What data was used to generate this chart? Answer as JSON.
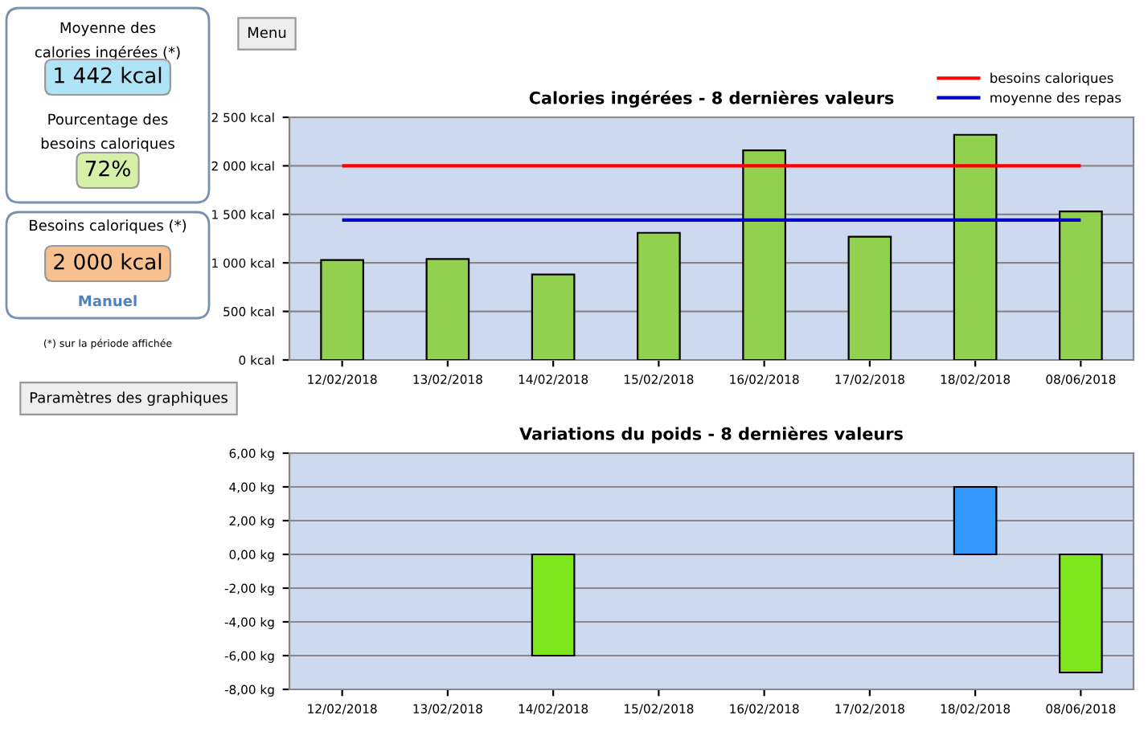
{
  "chart_data": [
    {
      "type": "other",
      "annotations": [
        "Menu",
        "Moyenne des",
        "calories ingérées (*)",
        "1 442 kcal",
        "Pourcentage des",
        "besoins caloriques",
        "72%",
        "Besoins caloriques (*)",
        "2 000 kcal",
        "Manuel",
        "(*) sur la période affichée",
        "Paramètres des graphiques"
      ]
    },
    {
      "type": "bar",
      "title": "Calories ingérées - 8 dernières valeurs",
      "categories": [
        "12/02/2018",
        "13/02/2018",
        "14/02/2018",
        "15/02/2018",
        "16/02/2018",
        "17/02/2018",
        "18/02/2018",
        "08/06/2018"
      ],
      "values": [
        1030,
        1040,
        880,
        1310,
        2160,
        1270,
        2320,
        1530
      ],
      "color": "#92d050",
      "ylim": [
        0,
        2500
      ],
      "yticks": [
        {
          "value": 0,
          "label": "0 kcal"
        },
        {
          "value": 500,
          "label": "500 kcal"
        },
        {
          "value": 1000,
          "label": "1 000 kcal"
        },
        {
          "value": 1500,
          "label": "1 500 kcal"
        },
        {
          "value": 2000,
          "label": "2 000 kcal"
        },
        {
          "value": 2500,
          "label": "2 500 kcal"
        }
      ],
      "ref_lines": [
        {
          "axis": "y",
          "value": 2000,
          "label": "besoins caloriques",
          "color": "#ff0000"
        },
        {
          "axis": "y",
          "value": 1442,
          "label": "moyenne des repas",
          "color": "#0000cc"
        }
      ],
      "grid": "y",
      "legend": "top right"
    },
    {
      "type": "bar",
      "title": "Variations du poids - 8 dernières valeurs",
      "categories": [
        "12/02/2018",
        "13/02/2018",
        "14/02/2018",
        "15/02/2018",
        "16/02/2018",
        "17/02/2018",
        "18/02/2018",
        "08/06/2018"
      ],
      "values": [
        null,
        null,
        -6,
        null,
        null,
        null,
        4,
        -7
      ],
      "colors": [
        "#7fe61e",
        "#7fe61e",
        "#7fe61e",
        "#7fe61e",
        "#7fe61e",
        "#7fe61e",
        "#3399ff",
        "#7fe61e"
      ],
      "ylim": [
        -8,
        6
      ],
      "yticks": [
        {
          "value": -8,
          "label": "-8,00 kg"
        },
        {
          "value": -6,
          "label": "-6,00 kg"
        },
        {
          "value": -4,
          "label": "-4,00 kg"
        },
        {
          "value": -2,
          "label": "-2,00 kg"
        },
        {
          "value": 0,
          "label": "0,00 kg"
        },
        {
          "value": 2,
          "label": "2,00 kg"
        },
        {
          "value": 4,
          "label": "4,00 kg"
        },
        {
          "value": 6,
          "label": "6,00 kg"
        }
      ],
      "grid": "y"
    }
  ]
}
